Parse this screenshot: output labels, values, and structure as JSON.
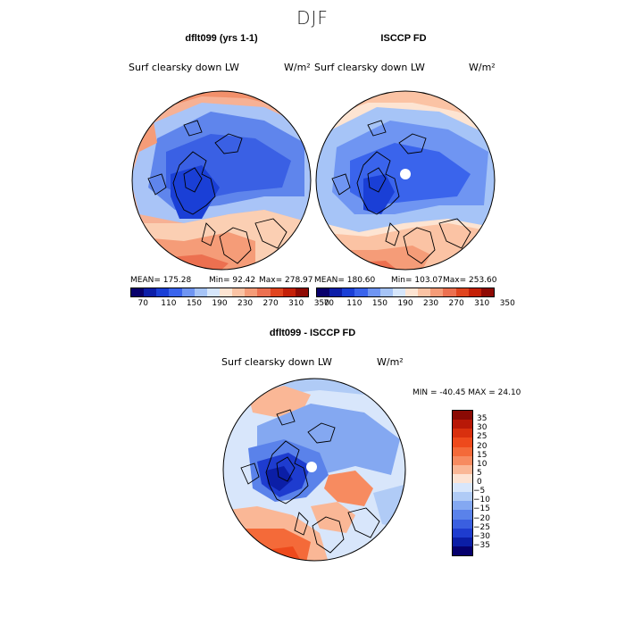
{
  "title": "DJF",
  "panels": [
    {
      "subtitle": "dflt099 (yrs 1-1)",
      "variable": "Surf clearsky down LW",
      "units": "W/m²",
      "mean": "MEAN= 175.28",
      "min": "Min=   92.42",
      "max": "Max= 278.97"
    },
    {
      "subtitle": "ISCCP FD",
      "variable": "Surf clearsky down LW",
      "units": "W/m²",
      "mean": "MEAN= 180.60",
      "min": "Min= 103.07",
      "max": "Max= 253.60"
    }
  ],
  "abs_colorbar": {
    "ticks": [
      "70",
      "110",
      "150",
      "190",
      "230",
      "270",
      "310",
      "350"
    ],
    "colors": [
      "#08006b",
      "#0c1ea8",
      "#1a3fd6",
      "#3a64ec",
      "#6f95f2",
      "#a6c4f7",
      "#d6e6fb",
      "#fde4d2",
      "#fbc3a4",
      "#f59c78",
      "#ec7050",
      "#e0451f",
      "#c42008",
      "#8f0a04"
    ]
  },
  "diff": {
    "subtitle": "dflt099 - ISCCP FD",
    "variable": "Surf clearsky down LW",
    "units": "W/m²",
    "minmax": "MIN = -40.45 MAX =  24.10",
    "ticks": [
      "35",
      "30",
      "25",
      "20",
      "15",
      "10",
      "5",
      "0",
      "-5",
      "-10",
      "-15",
      "-20",
      "-25",
      "-30",
      "-35"
    ],
    "colors": [
      "#8a0a04",
      "#b81807",
      "#d9300e",
      "#ee4a1c",
      "#f46a39",
      "#f78b60",
      "#fab796",
      "#fde3d3",
      "#d8e6fb",
      "#b0cbf6",
      "#84a8f1",
      "#5a82ea",
      "#3a5fe0",
      "#1e3ccf",
      "#0b1ea6",
      "#06006d"
    ]
  }
}
